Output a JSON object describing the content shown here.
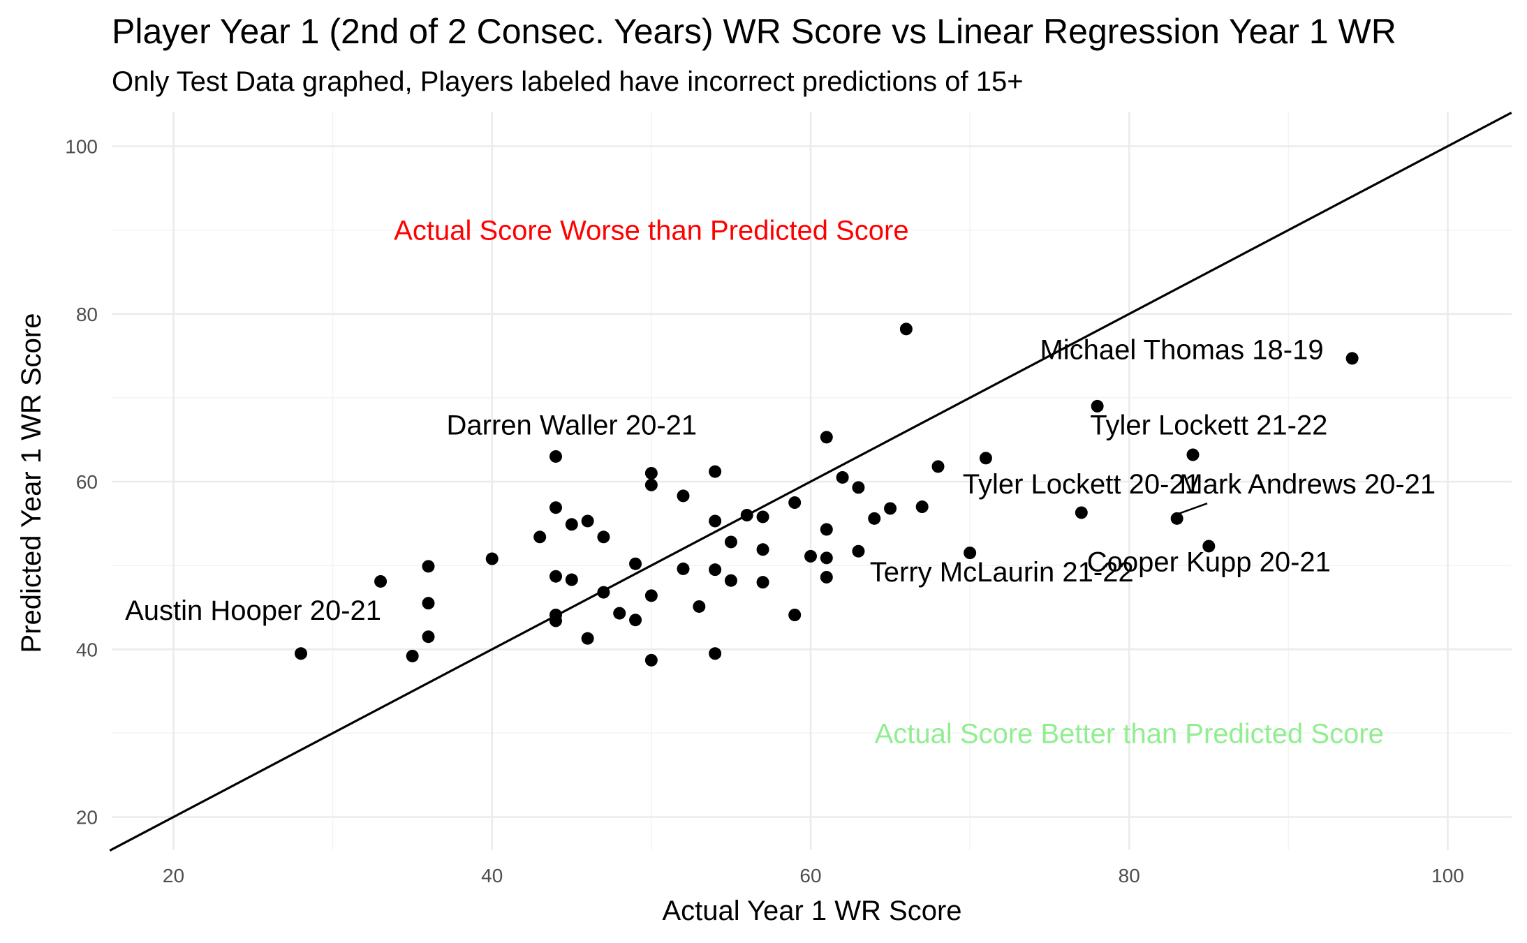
{
  "title": "Player Year 1 (2nd of 2 Consec. Years) WR Score vs Linear Regression Year 1 WR",
  "subtitle": "Only Test Data graphed, Players labeled have incorrect predictions of 15+",
  "chart_data": {
    "type": "scatter",
    "xlabel": "Actual Year 1 WR Score",
    "ylabel": "Predicted Year 1 WR Score",
    "xlim": [
      16,
      104
    ],
    "ylim": [
      16,
      104
    ],
    "xticks": [
      20,
      40,
      60,
      80,
      100
    ],
    "yticks": [
      20,
      40,
      60,
      80,
      100
    ],
    "grid": true,
    "reference_line": {
      "slope": 1,
      "intercept": 0
    },
    "points": [
      {
        "x": 66,
        "y": 78.2
      },
      {
        "x": 94,
        "y": 74.7
      },
      {
        "x": 78,
        "y": 69
      },
      {
        "x": 61,
        "y": 65.3
      },
      {
        "x": 44,
        "y": 63
      },
      {
        "x": 84,
        "y": 63.2
      },
      {
        "x": 50,
        "y": 61
      },
      {
        "x": 54,
        "y": 61.2
      },
      {
        "x": 50,
        "y": 59.6
      },
      {
        "x": 62,
        "y": 60.5
      },
      {
        "x": 63,
        "y": 59.3
      },
      {
        "x": 68,
        "y": 61.8
      },
      {
        "x": 71,
        "y": 62.8
      },
      {
        "x": 52,
        "y": 58.3
      },
      {
        "x": 59,
        "y": 57.5
      },
      {
        "x": 44,
        "y": 56.9
      },
      {
        "x": 46,
        "y": 55.3
      },
      {
        "x": 45,
        "y": 54.9
      },
      {
        "x": 54,
        "y": 55.3
      },
      {
        "x": 56,
        "y": 56
      },
      {
        "x": 57,
        "y": 55.8
      },
      {
        "x": 64,
        "y": 55.6
      },
      {
        "x": 65,
        "y": 56.8
      },
      {
        "x": 67,
        "y": 57
      },
      {
        "x": 77,
        "y": 56.3
      },
      {
        "x": 83,
        "y": 55.6
      },
      {
        "x": 43,
        "y": 53.4
      },
      {
        "x": 47,
        "y": 53.4
      },
      {
        "x": 61,
        "y": 54.3
      },
      {
        "x": 55,
        "y": 52.8
      },
      {
        "x": 57,
        "y": 51.9
      },
      {
        "x": 63,
        "y": 51.7
      },
      {
        "x": 85,
        "y": 52.3
      },
      {
        "x": 70,
        "y": 51.5
      },
      {
        "x": 40,
        "y": 50.8
      },
      {
        "x": 36,
        "y": 49.9
      },
      {
        "x": 49,
        "y": 50.2
      },
      {
        "x": 52,
        "y": 49.6
      },
      {
        "x": 54,
        "y": 49.5
      },
      {
        "x": 60,
        "y": 51.1
      },
      {
        "x": 61,
        "y": 50.9
      },
      {
        "x": 33,
        "y": 48.1
      },
      {
        "x": 44,
        "y": 48.7
      },
      {
        "x": 45,
        "y": 48.3
      },
      {
        "x": 55,
        "y": 48.2
      },
      {
        "x": 57,
        "y": 48
      },
      {
        "x": 61,
        "y": 48.6
      },
      {
        "x": 47,
        "y": 46.8
      },
      {
        "x": 50,
        "y": 46.4
      },
      {
        "x": 36,
        "y": 45.5
      },
      {
        "x": 53,
        "y": 45.1
      },
      {
        "x": 44,
        "y": 44.1
      },
      {
        "x": 44,
        "y": 43.4
      },
      {
        "x": 48,
        "y": 44.3
      },
      {
        "x": 49,
        "y": 43.5
      },
      {
        "x": 59,
        "y": 44.1
      },
      {
        "x": 36,
        "y": 41.5
      },
      {
        "x": 46,
        "y": 41.3
      },
      {
        "x": 28,
        "y": 39.5
      },
      {
        "x": 35,
        "y": 39.2
      },
      {
        "x": 50,
        "y": 38.7
      },
      {
        "x": 54,
        "y": 39.5
      }
    ],
    "annotations": [
      {
        "text": "Michael Thomas 18-19",
        "x": 83.3,
        "y": 74.6,
        "anchor": "middle"
      },
      {
        "text": "Tyler Lockett 21-22",
        "x": 85,
        "y": 65.6,
        "anchor": "middle"
      },
      {
        "text": "Darren Waller 20-21",
        "x": 45,
        "y": 65.6,
        "anchor": "middle"
      },
      {
        "text": "Tyler Lockett 20-21",
        "x": 77,
        "y": 58.6,
        "anchor": "middle"
      },
      {
        "text": "Mark Andrews 20-21",
        "x": 91.2,
        "y": 58.6,
        "anchor": "middle"
      },
      {
        "text": "Cooper Kupp 20-21",
        "x": 85,
        "y": 49.3,
        "anchor": "middle"
      },
      {
        "text": "Terry McLaurin 21-22",
        "x": 72,
        "y": 48.1,
        "anchor": "middle"
      },
      {
        "text": "Austin Hooper 20-21",
        "x": 25,
        "y": 43.5,
        "anchor": "middle"
      }
    ],
    "region_labels": [
      {
        "text": "Actual Score Worse than Predicted Score",
        "x": 50,
        "y": 90,
        "color": "#ff0000"
      },
      {
        "text": "Actual Score Better than Predicted Score",
        "x": 80,
        "y": 30,
        "color": "#90ee90"
      }
    ]
  }
}
